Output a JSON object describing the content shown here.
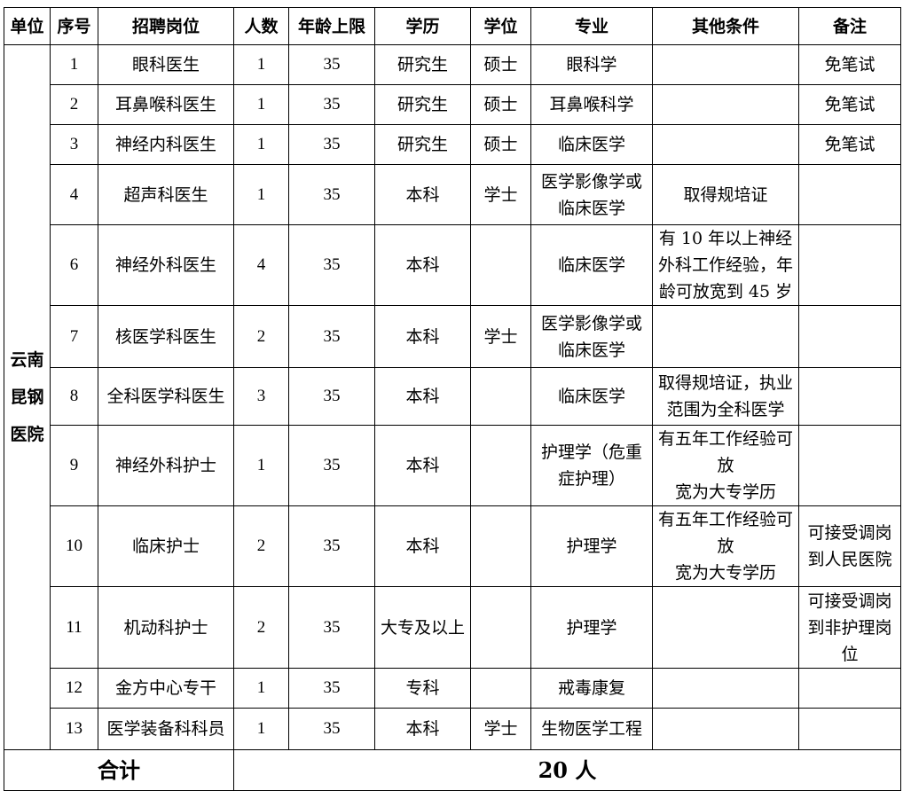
{
  "headers": [
    "单位",
    "序号",
    "招聘岗位",
    "人数",
    "年龄上限",
    "学历",
    "学位",
    "专业",
    "其他条件",
    "备注"
  ],
  "unit": "云南\n昆钢\n医院",
  "rows": [
    {
      "no": "1",
      "post": "眼科医生",
      "count": "1",
      "age": "35",
      "edu": "研究生",
      "degree": "硕士",
      "major": "眼科学",
      "other": "",
      "note": "免笔试"
    },
    {
      "no": "2",
      "post": "耳鼻喉科医生",
      "count": "1",
      "age": "35",
      "edu": "研究生",
      "degree": "硕士",
      "major": "耳鼻喉科学",
      "other": "",
      "note": "免笔试"
    },
    {
      "no": "3",
      "post": "神经内科医生",
      "count": "1",
      "age": "35",
      "edu": "研究生",
      "degree": "硕士",
      "major": "临床医学",
      "other": "",
      "note": "免笔试"
    },
    {
      "no": "4",
      "post": "超声科医生",
      "count": "1",
      "age": "35",
      "edu": "本科",
      "degree": "学士",
      "major": "医学影像学或\n临床医学",
      "other": "取得规培证",
      "note": ""
    },
    {
      "no": "6",
      "post": "神经外科医生",
      "count": "4",
      "age": "35",
      "edu": "本科",
      "degree": "",
      "major": "临床医学",
      "other": "有 10 年以上神经\n外科工作经验，年\n龄可放宽到 45 岁",
      "note": ""
    },
    {
      "no": "7",
      "post": "核医学科医生",
      "count": "2",
      "age": "35",
      "edu": "本科",
      "degree": "学士",
      "major": "医学影像学或\n临床医学",
      "other": "",
      "note": ""
    },
    {
      "no": "8",
      "post": "全科医学科医生",
      "count": "3",
      "age": "35",
      "edu": "本科",
      "degree": "",
      "major": "临床医学",
      "other": "取得规培证，执业\n范围为全科医学",
      "note": ""
    },
    {
      "no": "9",
      "post": "神经外科护士",
      "count": "1",
      "age": "35",
      "edu": "本科",
      "degree": "",
      "major": "护理学（危重\n症护理）",
      "other": "有五年工作经验可放\n宽为大专学历",
      "note": ""
    },
    {
      "no": "10",
      "post": "临床护士",
      "count": "2",
      "age": "35",
      "edu": "本科",
      "degree": "",
      "major": "护理学",
      "other": "有五年工作经验可放\n宽为大专学历",
      "note": "可接受调岗\n到人民医院"
    },
    {
      "no": "11",
      "post": "机动科护士",
      "count": "2",
      "age": "35",
      "edu": "大专及以上",
      "degree": "",
      "major": "护理学",
      "other": "",
      "note": "可接受调岗\n到非护理岗\n位"
    },
    {
      "no": "12",
      "post": "金方中心专干",
      "count": "1",
      "age": "35",
      "edu": "专科",
      "degree": "",
      "major": "戒毒康复",
      "other": "",
      "note": ""
    },
    {
      "no": "13",
      "post": "医学装备科科员",
      "count": "1",
      "age": "35",
      "edu": "本科",
      "degree": "学士",
      "major": "生物医学工程",
      "other": "",
      "note": ""
    }
  ],
  "total": {
    "label": "合计",
    "value": "20 人"
  }
}
